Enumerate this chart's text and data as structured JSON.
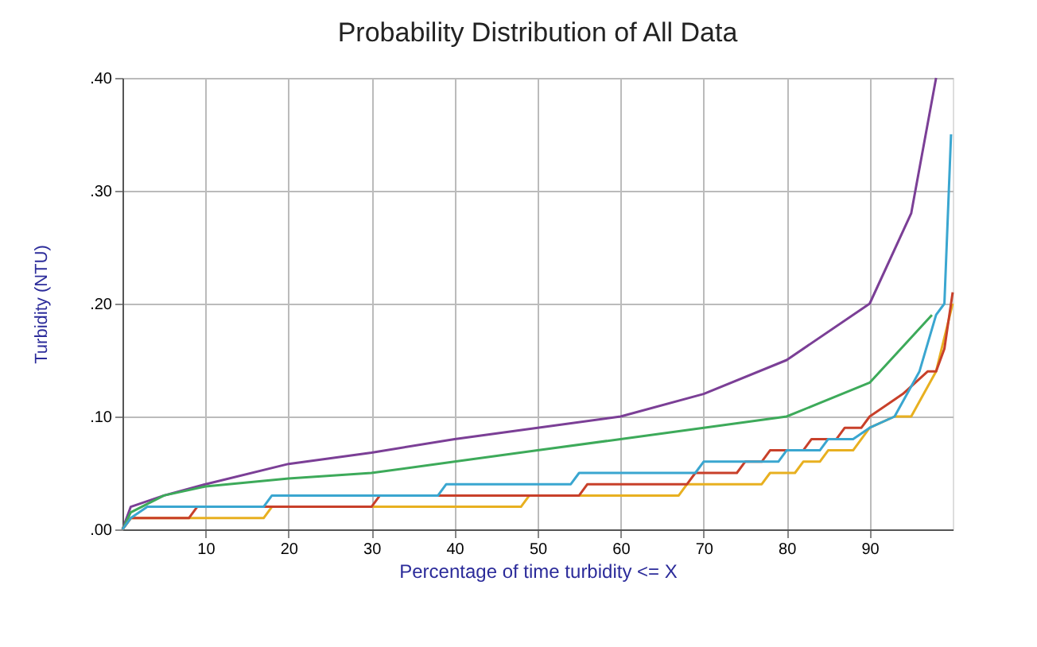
{
  "chart_data": {
    "type": "line",
    "title": "Probability Distribution of All Data",
    "xlabel": "Percentage of time turbidity <= X",
    "ylabel": "Turbidity (NTU)",
    "xlim": [
      0,
      100
    ],
    "xticks": [
      10,
      20,
      30,
      40,
      50,
      60,
      70,
      80,
      90
    ],
    "ylim": [
      0,
      0.4
    ],
    "yticks": [
      {
        "value": 0,
        "label": ".00"
      },
      {
        "value": 0.1,
        "label": ".10"
      },
      {
        "value": 0.2,
        "label": ".20"
      },
      {
        "value": 0.3,
        "label": ".30"
      },
      {
        "value": 0.4,
        "label": ".40"
      }
    ],
    "grid": true,
    "legend": false,
    "line_style": "solid",
    "marker": "none",
    "series": [
      {
        "color": "#7b3f96",
        "x": [
          0,
          1,
          5,
          10,
          20,
          30,
          40,
          50,
          60,
          70,
          80,
          90,
          95,
          98
        ],
        "values": [
          0,
          0.02,
          0.03,
          0.04,
          0.058,
          0.068,
          0.08,
          0.09,
          0.1,
          0.12,
          0.15,
          0.2,
          0.28,
          0.4
        ]
      },
      {
        "color": "#3daa5a",
        "x": [
          0,
          1,
          5,
          10,
          20,
          30,
          40,
          50,
          60,
          70,
          80,
          90,
          97.5
        ],
        "values": [
          0,
          0.015,
          0.03,
          0.038,
          0.045,
          0.05,
          0.06,
          0.07,
          0.08,
          0.09,
          0.1,
          0.13,
          0.19
        ]
      },
      {
        "color": "#e8b020",
        "x": [
          0,
          1,
          17,
          18,
          48,
          49,
          67,
          68,
          77,
          78,
          81,
          82,
          84,
          85,
          88,
          90,
          93,
          95,
          98,
          100
        ],
        "values": [
          0,
          0.01,
          0.01,
          0.02,
          0.02,
          0.03,
          0.03,
          0.04,
          0.04,
          0.05,
          0.05,
          0.06,
          0.06,
          0.07,
          0.07,
          0.09,
          0.1,
          0.1,
          0.14,
          0.2
        ]
      },
      {
        "color": "#c8402a",
        "x": [
          0,
          1,
          8,
          9,
          30,
          31,
          55,
          56,
          68,
          69,
          74,
          75,
          77,
          78,
          82,
          83,
          86,
          87,
          89,
          90,
          94,
          97,
          98,
          99,
          100
        ],
        "values": [
          0,
          0.01,
          0.01,
          0.02,
          0.02,
          0.03,
          0.03,
          0.04,
          0.04,
          0.05,
          0.05,
          0.06,
          0.06,
          0.07,
          0.07,
          0.08,
          0.08,
          0.09,
          0.09,
          0.1,
          0.12,
          0.14,
          0.14,
          0.16,
          0.21
        ]
      },
      {
        "color": "#3aa6d0",
        "x": [
          0,
          1,
          3,
          17,
          18,
          38,
          39,
          54,
          55,
          69,
          70,
          79,
          80,
          84,
          85,
          88,
          90,
          93,
          96,
          98,
          99,
          99.8
        ],
        "values": [
          0,
          0.01,
          0.02,
          0.02,
          0.03,
          0.03,
          0.04,
          0.04,
          0.05,
          0.05,
          0.06,
          0.06,
          0.07,
          0.07,
          0.08,
          0.08,
          0.09,
          0.1,
          0.14,
          0.19,
          0.2,
          0.35
        ]
      }
    ]
  }
}
